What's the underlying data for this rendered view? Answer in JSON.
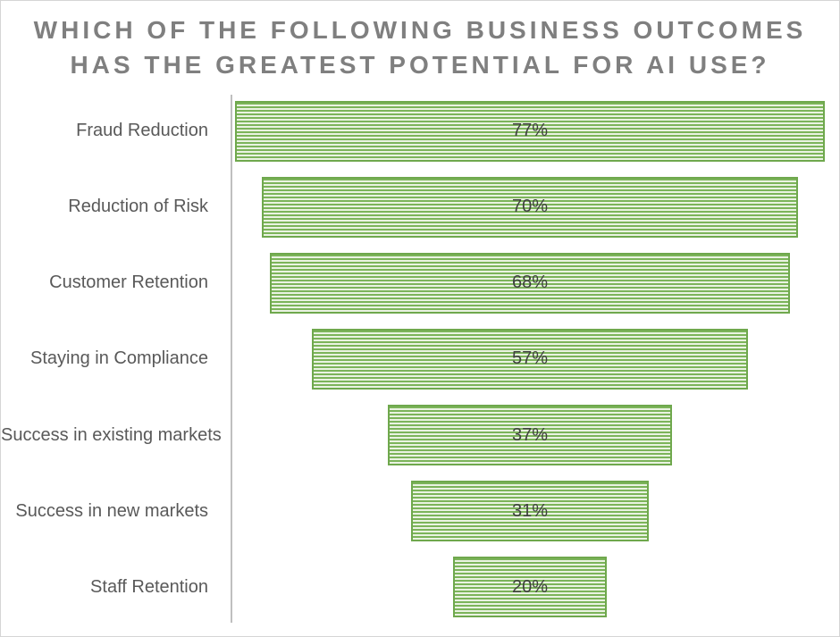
{
  "title": {
    "full": "WHICH OF THE FOLLOWING BUSINESS OUTCOMES HAS THE GREATEST POTENTIAL FOR AI USE?",
    "lines": [
      "WHICH OF THE FOLLOWING BUSINESS OUTCOMES",
      "HAS THE GREATEST POTENTIAL FOR AI USE?"
    ]
  },
  "chart_data": {
    "type": "bar",
    "subtype": "funnel",
    "orientation": "horizontal-centered",
    "title": "WHICH OF THE FOLLOWING BUSINESS OUTCOMES HAS THE GREATEST POTENTIAL FOR AI USE?",
    "categories": [
      "Fraud Reduction",
      "Reduction of Risk",
      "Customer Retention",
      "Staying in Compliance",
      "Success in existing markets",
      "Success in new markets",
      "Staff Retention"
    ],
    "values": [
      77,
      70,
      68,
      57,
      37,
      31,
      20
    ],
    "value_labels": [
      "77%",
      "70%",
      "68%",
      "57%",
      "37%",
      "31%",
      "20%"
    ],
    "value_unit": "%",
    "xlim": [
      0,
      100
    ],
    "grid": false,
    "legend": false,
    "bar_fill_pattern": "horizontal-stripes"
  },
  "colors": {
    "background": "#ffffff",
    "frame_border": "#d5d5d5",
    "title_text": "#7f7f7f",
    "category_text": "#595959",
    "value_text": "#404040",
    "axis_line": "#bfbfbf",
    "bar_stripe_green": "#7cb45a",
    "bar_stripe_light": "#eaf3e2",
    "bar_border": "#6fa84d"
  }
}
